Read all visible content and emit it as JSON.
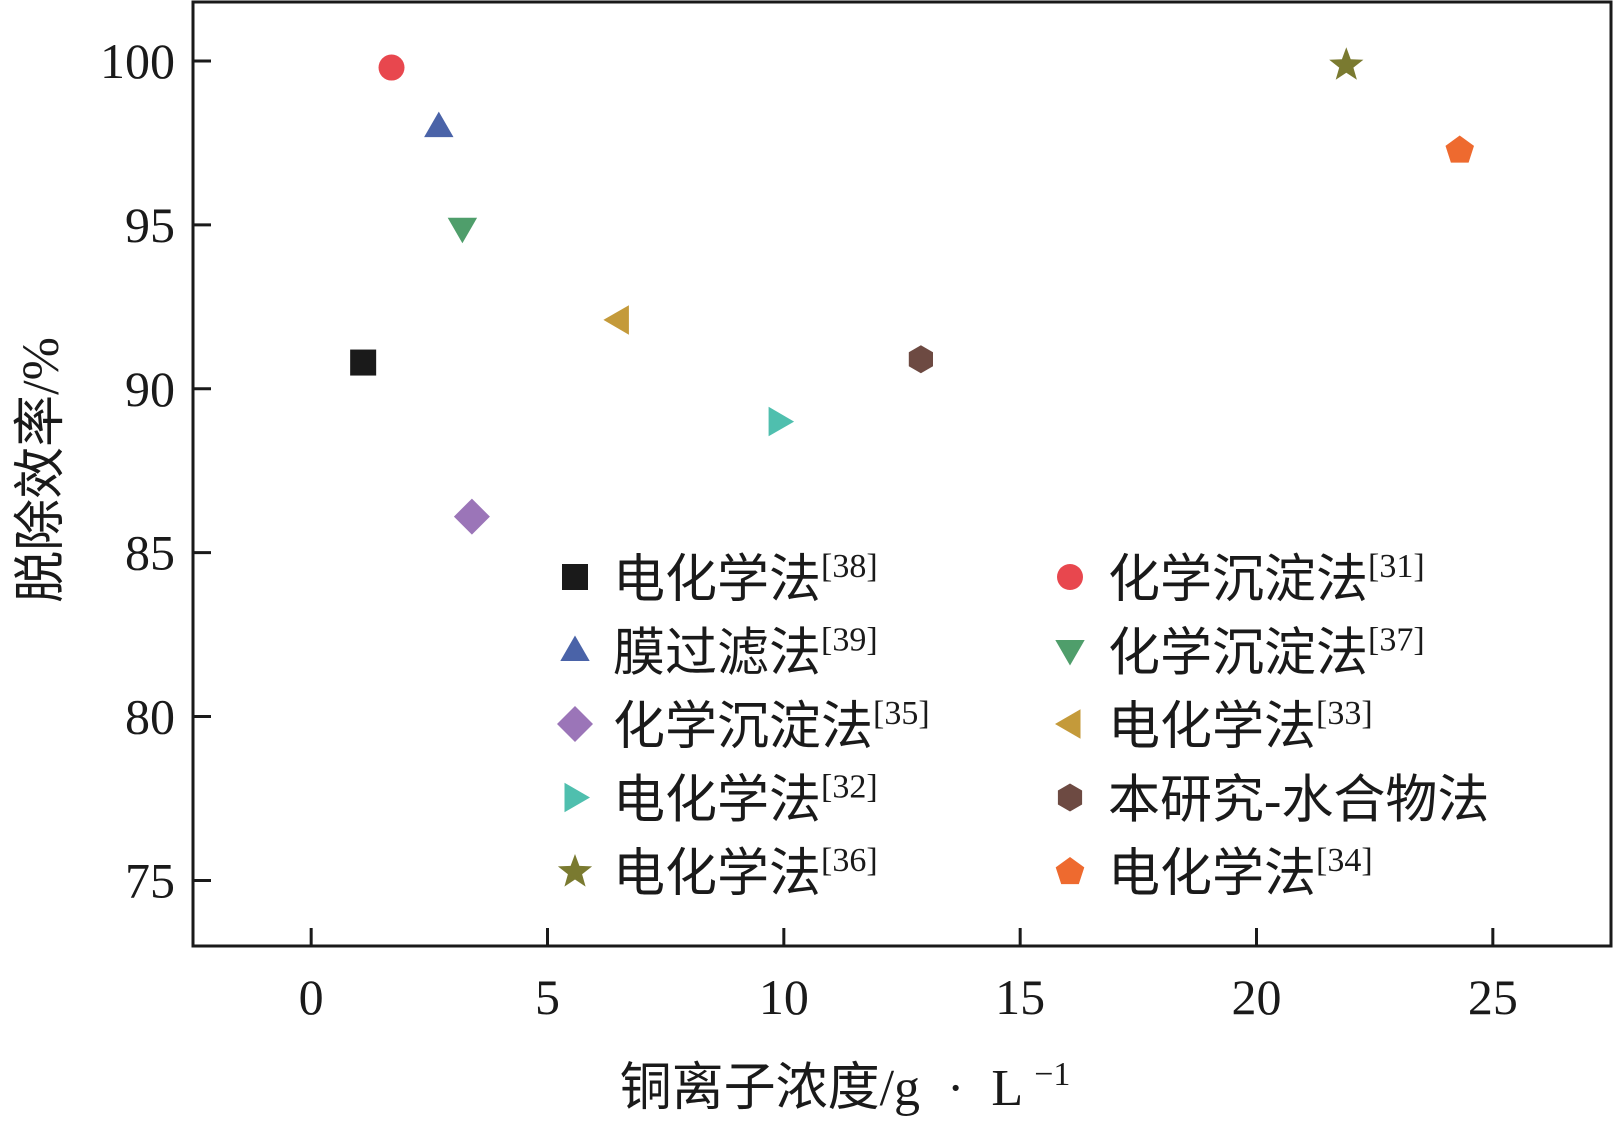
{
  "chart_data": {
    "type": "scatter",
    "title": "",
    "xlabel": "铜离子浓度/g",
    "xlabel_unit_sep": "·",
    "xlabel_unit": "L",
    "xlabel_unit_exp": "−1",
    "ylabel": "脱除效率/%",
    "xlim": [
      -2.5,
      27.5
    ],
    "ylim": [
      73,
      101.8
    ],
    "xticks": [
      0,
      5,
      10,
      15,
      20,
      25
    ],
    "yticks": [
      75,
      80,
      85,
      90,
      95,
      100
    ],
    "grid": false,
    "legend_position": "bottom-right",
    "legend_columns": 2,
    "series": [
      {
        "name": "电化学法",
        "ref": "[38]",
        "marker": "square",
        "color": "#1a1a1a",
        "x": 1.1,
        "y": 90.8
      },
      {
        "name": "化学沉淀法",
        "ref": "[31]",
        "marker": "circle",
        "color": "#e8474e",
        "x": 1.7,
        "y": 99.8
      },
      {
        "name": "膜过滤法",
        "ref": "[39]",
        "marker": "triangle-up",
        "color": "#4a63a8",
        "x": 2.7,
        "y": 98.0
      },
      {
        "name": "化学沉淀法",
        "ref": "[37]",
        "marker": "triangle-down",
        "color": "#4f9e6b",
        "x": 3.2,
        "y": 94.9
      },
      {
        "name": "化学沉淀法",
        "ref": "[35]",
        "marker": "diamond",
        "color": "#9b75b8",
        "x": 3.4,
        "y": 86.1
      },
      {
        "name": "电化学法",
        "ref": "[33]",
        "marker": "triangle-left",
        "color": "#c49a3a",
        "x": 6.5,
        "y": 92.1
      },
      {
        "name": "电化学法",
        "ref": "[32]",
        "marker": "triangle-right",
        "color": "#4fbfae",
        "x": 9.9,
        "y": 89.0
      },
      {
        "name": "本研究-水合物法",
        "ref": "",
        "marker": "hexagon",
        "color": "#6d4a42",
        "x": 12.9,
        "y": 90.9
      },
      {
        "name": "电化学法",
        "ref": "[36]",
        "marker": "star",
        "color": "#7a7a30",
        "x": 21.9,
        "y": 99.9
      },
      {
        "name": "电化学法",
        "ref": "[34]",
        "marker": "pentagon",
        "color": "#ee6a2f",
        "x": 24.3,
        "y": 97.3
      }
    ]
  }
}
